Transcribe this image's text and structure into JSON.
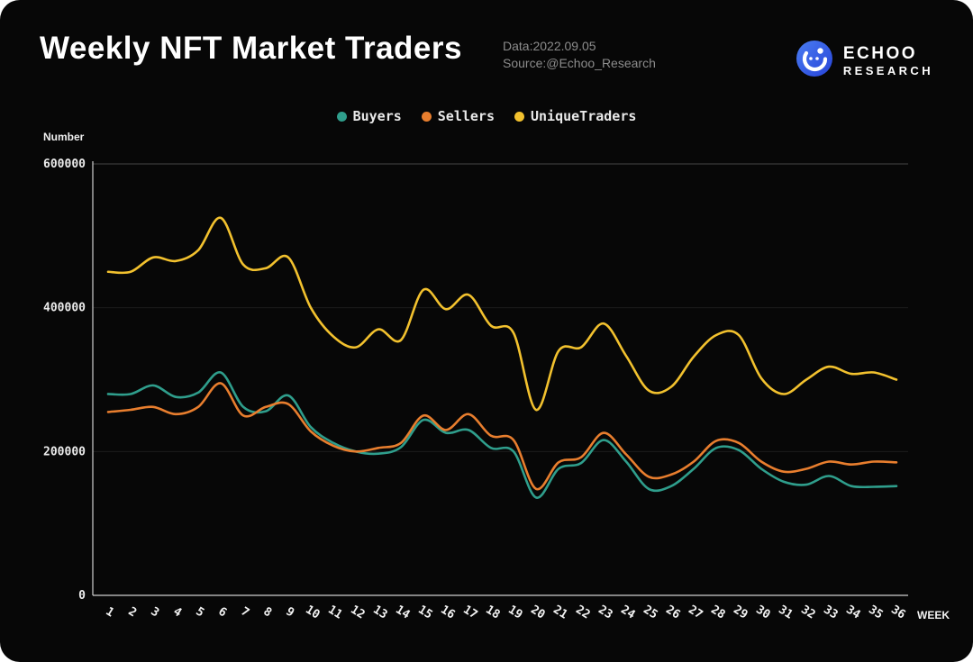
{
  "header": {
    "title": "Weekly NFT Market Traders",
    "date": "Data:2022.09.05",
    "source": "Source:@Echoo_Research",
    "brand_line1": "ECHOO",
    "brand_line2": "RESEARCH"
  },
  "colors": {
    "background": "#070707",
    "title_text": "#ffffff",
    "meta_text": "#8c8c8c",
    "axis": "#cfcfcf",
    "gridline_top": "#454545",
    "gridline_faint": "#1c1c1c",
    "logo_blue": "#3a5cf0"
  },
  "chart_data": {
    "type": "line",
    "title": "Weekly NFT Market Traders",
    "xlabel": "WEEK",
    "ylabel": "Number",
    "ylim": [
      0,
      600000
    ],
    "yticks": [
      0,
      200000,
      400000,
      600000
    ],
    "grid": true,
    "legend_position": "top-center",
    "x": [
      1,
      2,
      3,
      4,
      5,
      6,
      7,
      8,
      9,
      10,
      11,
      12,
      13,
      14,
      15,
      16,
      17,
      18,
      19,
      20,
      21,
      22,
      23,
      24,
      25,
      26,
      27,
      28,
      29,
      30,
      31,
      32,
      33,
      34,
      35,
      36
    ],
    "series": [
      {
        "name": "Buyers",
        "color": "#2f9e8c",
        "values": [
          280000,
          280000,
          292000,
          276000,
          282000,
          310000,
          262000,
          256000,
          278000,
          234000,
          212000,
          200000,
          197000,
          206000,
          244000,
          226000,
          230000,
          205000,
          200000,
          136000,
          176000,
          184000,
          216000,
          186000,
          148000,
          152000,
          176000,
          205000,
          202000,
          176000,
          158000,
          154000,
          166000,
          152000,
          151000,
          152000
        ]
      },
      {
        "name": "Sellers",
        "color": "#e87e2e",
        "values": [
          255000,
          258000,
          262000,
          252000,
          262000,
          295000,
          250000,
          262000,
          266000,
          228000,
          208000,
          200000,
          205000,
          212000,
          250000,
          230000,
          252000,
          222000,
          216000,
          148000,
          185000,
          192000,
          226000,
          196000,
          165000,
          168000,
          186000,
          215000,
          212000,
          186000,
          172000,
          176000,
          186000,
          182000,
          186000,
          185000
        ]
      },
      {
        "name": "UniqueTraders",
        "color": "#f2c12e",
        "values": [
          450000,
          450000,
          470000,
          465000,
          480000,
          525000,
          460000,
          455000,
          470000,
          400000,
          360000,
          345000,
          370000,
          355000,
          425000,
          398000,
          418000,
          375000,
          365000,
          258000,
          340000,
          345000,
          378000,
          333000,
          285000,
          290000,
          332000,
          362000,
          362000,
          302000,
          280000,
          300000,
          318000,
          308000,
          310000,
          300000
        ]
      }
    ]
  }
}
